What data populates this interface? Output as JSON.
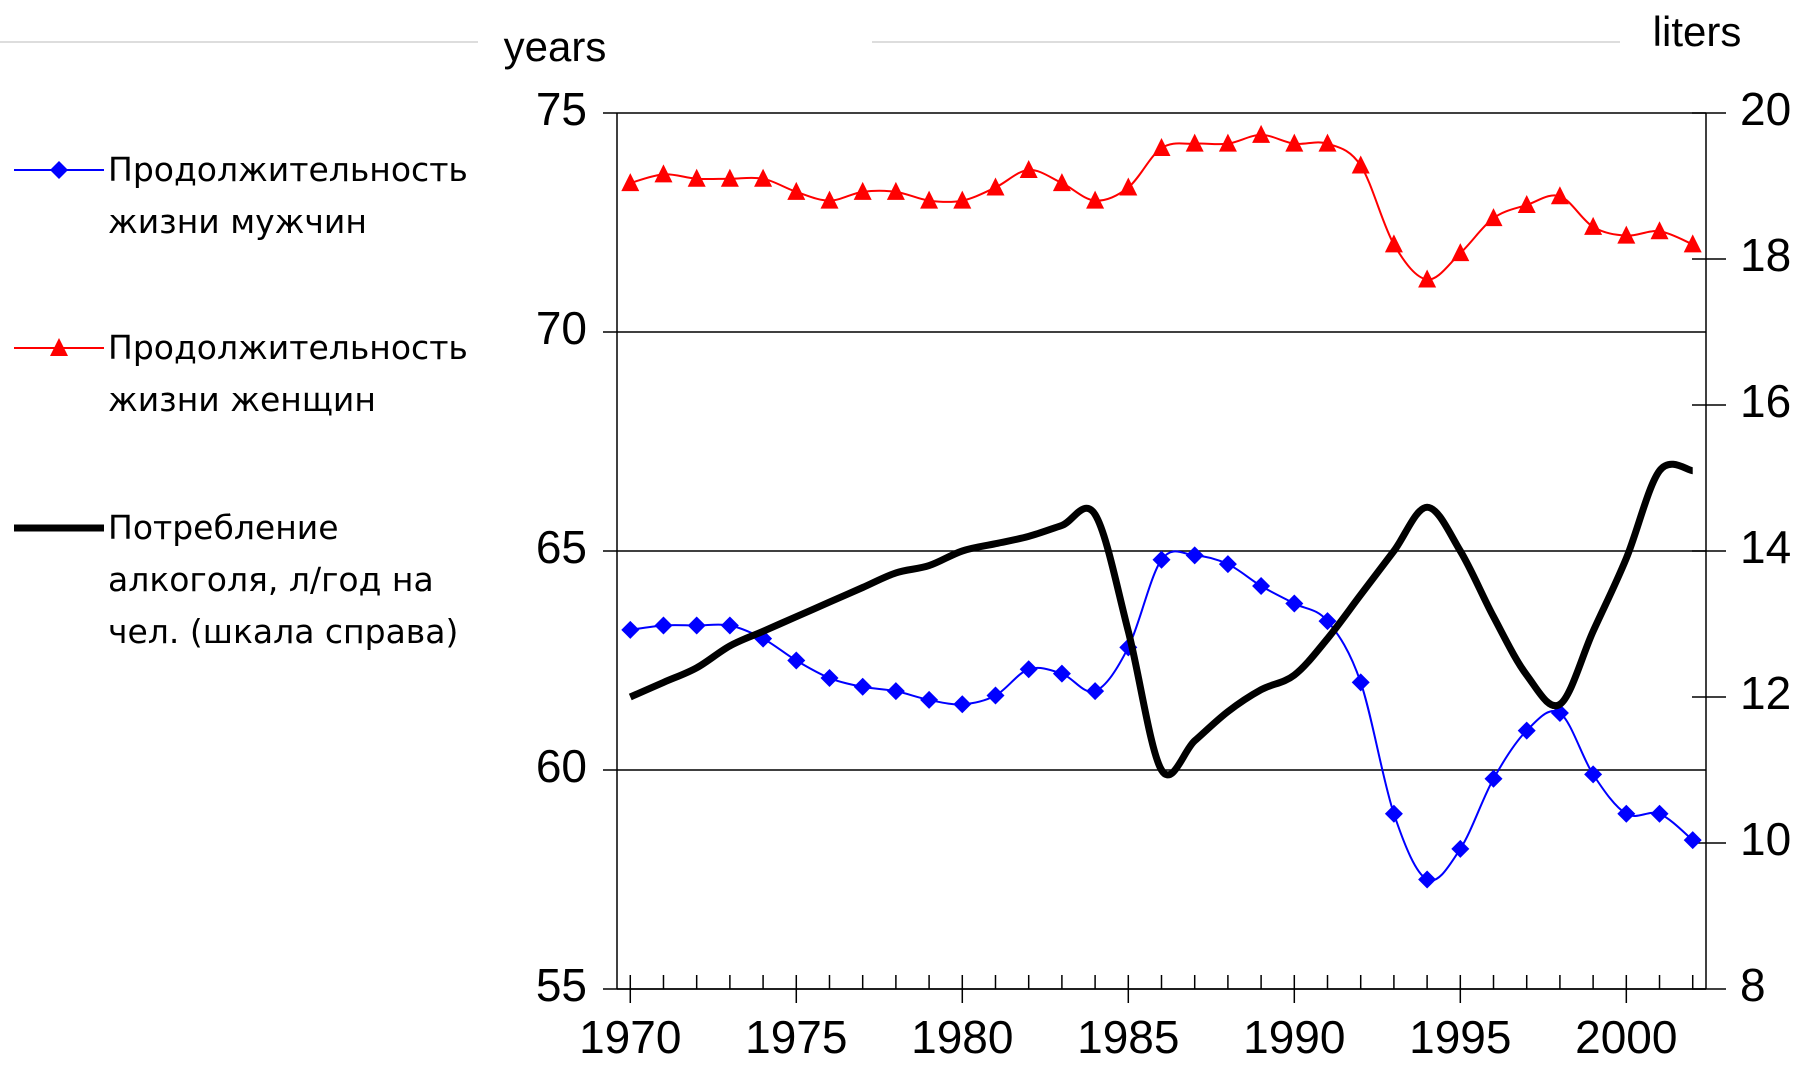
{
  "chart_data": {
    "type": "line",
    "x": [
      1970,
      1971,
      1972,
      1973,
      1974,
      1975,
      1976,
      1977,
      1978,
      1979,
      1980,
      1981,
      1982,
      1983,
      1984,
      1985,
      1986,
      1987,
      1988,
      1989,
      1990,
      1991,
      1992,
      1993,
      1994,
      1995,
      1996,
      1997,
      1998,
      1999,
      2000,
      2001,
      2002
    ],
    "xlim": [
      1969.6,
      2002.4
    ],
    "xticks": [
      1970,
      1975,
      1980,
      1985,
      1990,
      1995,
      2000
    ],
    "ylim": [
      55,
      75
    ],
    "yticks": [
      55,
      60,
      65,
      70,
      75
    ],
    "y2lim": [
      8,
      20
    ],
    "y2ticks": [
      8,
      10,
      12,
      14,
      16,
      18,
      20
    ],
    "y_label": "years",
    "y2_label": "liters",
    "grid": true,
    "series": [
      {
        "name": "Продолжительность жизни мужчин",
        "color": "#0000ff",
        "marker": "diamond",
        "values": [
          63.2,
          63.3,
          63.3,
          63.3,
          63.0,
          62.5,
          62.1,
          61.9,
          61.8,
          61.6,
          61.5,
          61.7,
          62.3,
          62.2,
          61.8,
          62.8,
          64.8,
          64.9,
          64.7,
          64.2,
          63.8,
          63.4,
          62.0,
          59.0,
          57.5,
          58.2,
          59.8,
          60.9,
          61.3,
          59.9,
          59.0,
          59.0,
          58.4
        ]
      },
      {
        "name": "Продолжительность жизни женщин",
        "color": "#ff0000",
        "marker": "triangle",
        "values": [
          73.4,
          73.6,
          73.5,
          73.5,
          73.5,
          73.2,
          73.0,
          73.2,
          73.2,
          73.0,
          73.0,
          73.3,
          73.7,
          73.4,
          73.0,
          73.3,
          74.2,
          74.3,
          74.3,
          74.5,
          74.3,
          74.3,
          73.8,
          72.0,
          71.2,
          71.8,
          72.6,
          72.9,
          73.1,
          72.4,
          72.2,
          72.3,
          72.0
        ]
      },
      {
        "name": "Потребление алкоголя, л/год на чел. (шкала справа)",
        "color": "#000000",
        "axis": "y2",
        "values": [
          12.0,
          12.2,
          12.4,
          12.7,
          12.9,
          13.1,
          13.3,
          13.5,
          13.7,
          13.8,
          14.0,
          14.1,
          14.2,
          14.35,
          14.5,
          12.9,
          11.0,
          11.4,
          11.8,
          12.1,
          12.3,
          12.8,
          13.4,
          14.0,
          14.6,
          14.0,
          13.1,
          12.3,
          11.9,
          12.9,
          13.9,
          15.1,
          15.1
        ]
      }
    ]
  }
}
